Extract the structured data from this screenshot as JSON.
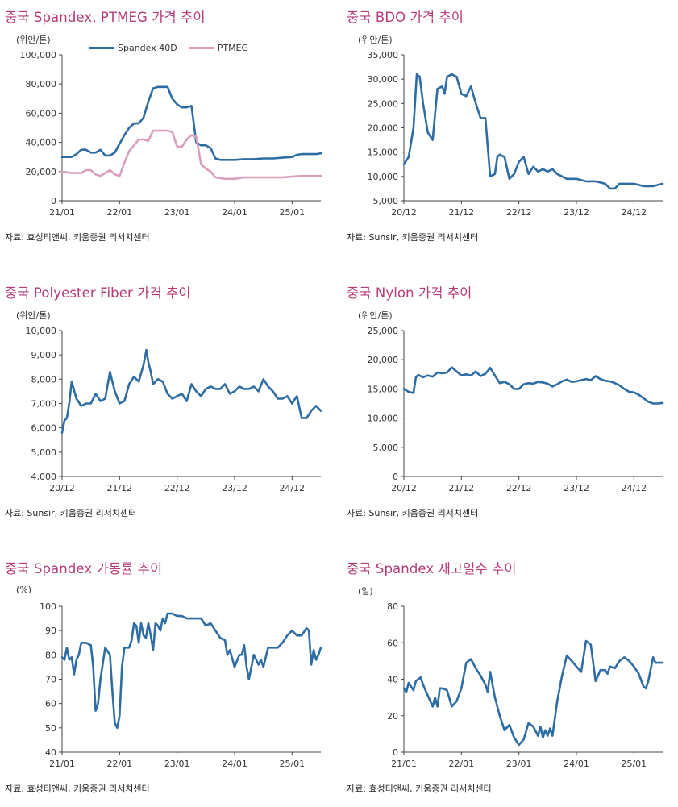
{
  "chart_data": [
    {
      "id": "spandex-ptmeg",
      "type": "line",
      "title": "중국 Spandex, PTMEG 가격 추이",
      "unit": "(위안/톤)",
      "source": "자료: 효성티앤씨, 키움증권 리서치센터",
      "ylim": [
        0,
        100000
      ],
      "yticks": [
        "0",
        "20,000",
        "40,000",
        "60,000",
        "80,000",
        "100,000"
      ],
      "xlim": [
        0,
        54
      ],
      "xticks": [
        {
          "label": "21/01",
          "x": 0
        },
        {
          "label": "22/01",
          "x": 12
        },
        {
          "label": "23/01",
          "x": 24
        },
        {
          "label": "24/01",
          "x": 36
        },
        {
          "label": "25/01",
          "x": 48
        }
      ],
      "legend": "top-center",
      "series": [
        {
          "name": "Spandex 40D",
          "color": "#2e6da4",
          "x": [
            0,
            2,
            3,
            4,
            5,
            6,
            7,
            8,
            9,
            10,
            11,
            12,
            13,
            14,
            15,
            16,
            17,
            18,
            19,
            20,
            21,
            22,
            23,
            24,
            25,
            26,
            27,
            28,
            29,
            30,
            31,
            32,
            33,
            34,
            35,
            36,
            38,
            40,
            42,
            44,
            46,
            48,
            49,
            50,
            52,
            53,
            54
          ],
          "y": [
            30000,
            30000,
            32000,
            35000,
            35000,
            33000,
            33000,
            35000,
            31000,
            31000,
            33000,
            39000,
            45000,
            50000,
            53000,
            53000,
            57000,
            68000,
            77000,
            78000,
            78000,
            78000,
            70000,
            66000,
            64000,
            64000,
            65000,
            40000,
            38000,
            38000,
            36000,
            29000,
            28000,
            28000,
            28000,
            28000,
            28500,
            28500,
            29000,
            29000,
            29500,
            30000,
            31500,
            32000,
            32000,
            32000,
            32500
          ]
        },
        {
          "name": "PTMEG",
          "color": "#d9a0bd",
          "x": [
            0,
            2,
            4,
            5,
            6,
            7,
            8,
            9,
            10,
            11,
            12,
            13,
            14,
            15,
            16,
            17,
            18,
            19,
            20,
            21,
            22,
            23,
            24,
            25,
            26,
            27,
            28,
            29,
            30,
            31,
            32,
            34,
            36,
            38,
            40,
            42,
            44,
            46,
            48,
            50,
            52,
            54
          ],
          "y": [
            20000,
            19000,
            19000,
            21000,
            21000,
            18000,
            17000,
            19000,
            21000,
            18000,
            17000,
            26000,
            34000,
            38000,
            42000,
            42000,
            41000,
            48000,
            48000,
            48000,
            48000,
            47000,
            37000,
            37000,
            42000,
            45000,
            44000,
            25000,
            22000,
            20000,
            16000,
            15000,
            15000,
            16000,
            16000,
            16000,
            16000,
            16000,
            16500,
            17000,
            17000,
            17000
          ]
        }
      ]
    },
    {
      "id": "bdo",
      "type": "line",
      "title": "중국 BDO 가격 추이",
      "unit": "(위안/톤)",
      "source": "자료: Sunsir, 키움증권 리서치센터",
      "ylim": [
        5000,
        35000
      ],
      "yticks": [
        "5,000",
        "10,000",
        "15,000",
        "20,000",
        "25,000",
        "30,000",
        "35,000"
      ],
      "xlim": [
        0,
        54
      ],
      "xticks": [
        {
          "label": "20/12",
          "x": 0
        },
        {
          "label": "21/12",
          "x": 12
        },
        {
          "label": "22/12",
          "x": 24
        },
        {
          "label": "23/12",
          "x": 36
        },
        {
          "label": "24/12",
          "x": 48
        }
      ],
      "series": [
        {
          "name": "",
          "color": "#2e6da4",
          "x": [
            0,
            1,
            2,
            2.7,
            3.3,
            4,
            5,
            6,
            7,
            8,
            8.5,
            9,
            10,
            11,
            12,
            13,
            14,
            15,
            16,
            17,
            18,
            19,
            19.5,
            20,
            21,
            22,
            23,
            24,
            25,
            26,
            27,
            28,
            29,
            30,
            31,
            32,
            33,
            34,
            35,
            36,
            38,
            40,
            42,
            43,
            44,
            45,
            46,
            47,
            48,
            50,
            52,
            54
          ],
          "y": [
            12500,
            14000,
            20000,
            31000,
            30500,
            25000,
            19000,
            17500,
            28000,
            28500,
            27000,
            30500,
            31000,
            30500,
            27000,
            26500,
            28500,
            25000,
            22000,
            22000,
            10000,
            10500,
            14000,
            14500,
            14000,
            9500,
            10500,
            13000,
            14000,
            10500,
            12000,
            11000,
            11500,
            11000,
            11500,
            10500,
            10000,
            9500,
            9500,
            9500,
            9000,
            9000,
            8500,
            7500,
            7500,
            8500,
            8500,
            8500,
            8500,
            8000,
            8000,
            8500
          ]
        }
      ]
    },
    {
      "id": "polyester",
      "type": "line",
      "title": "중국 Polyester Fiber 가격 추이",
      "unit": "(위안/톤)",
      "source": "자료: Sunsir, 키움증권 리서치센터",
      "ylim": [
        4000,
        10000
      ],
      "yticks": [
        "4,000",
        "5,000",
        "6,000",
        "7,000",
        "8,000",
        "9,000",
        "10,000"
      ],
      "xlim": [
        0,
        54
      ],
      "xticks": [
        {
          "label": "20/12",
          "x": 0
        },
        {
          "label": "21/12",
          "x": 12
        },
        {
          "label": "22/12",
          "x": 24
        },
        {
          "label": "23/12",
          "x": 36
        },
        {
          "label": "24/12",
          "x": 48
        }
      ],
      "series": [
        {
          "name": "",
          "color": "#2e6da4",
          "x": [
            0,
            0.5,
            1,
            1.5,
            2,
            3,
            4,
            5,
            6,
            7,
            8,
            9,
            10,
            11,
            12,
            13,
            14,
            15,
            16,
            17,
            17.6,
            18,
            18.5,
            19,
            20,
            21,
            22,
            23,
            24,
            25,
            26,
            27,
            28,
            29,
            30,
            31,
            32,
            33,
            34,
            35,
            36,
            37,
            38,
            39,
            40,
            41,
            42,
            43,
            44,
            45,
            46,
            47,
            48,
            49,
            50,
            51,
            52,
            53,
            54
          ],
          "y": [
            5800,
            6300,
            6400,
            7000,
            7900,
            7200,
            6900,
            7000,
            7000,
            7400,
            7100,
            7200,
            8300,
            7500,
            7000,
            7100,
            7800,
            8100,
            7900,
            8600,
            9200,
            8700,
            8300,
            7800,
            8000,
            7900,
            7400,
            7200,
            7300,
            7400,
            7100,
            7800,
            7500,
            7300,
            7600,
            7700,
            7600,
            7600,
            7800,
            7400,
            7500,
            7700,
            7600,
            7600,
            7700,
            7500,
            8000,
            7700,
            7500,
            7200,
            7200,
            7300,
            7000,
            7300,
            6400,
            6400,
            6700,
            6900,
            6700
          ]
        }
      ]
    },
    {
      "id": "nylon",
      "type": "line",
      "title": "중국 Nylon 가격 추이",
      "unit": "(위안/톤)",
      "source": "자료: Sunsir, 키움증권 리서치센터",
      "ylim": [
        0,
        25000
      ],
      "yticks": [
        "0",
        "5,000",
        "10,000",
        "15,000",
        "20,000",
        "25,000"
      ],
      "xlim": [
        0,
        54
      ],
      "xticks": [
        {
          "label": "20/12",
          "x": 0
        },
        {
          "label": "21/12",
          "x": 12
        },
        {
          "label": "22/12",
          "x": 24
        },
        {
          "label": "23/12",
          "x": 36
        },
        {
          "label": "24/12",
          "x": 48
        }
      ],
      "series": [
        {
          "name": "",
          "color": "#2e6da4",
          "x": [
            0,
            1,
            2,
            2.5,
            3,
            4,
            5,
            6,
            7,
            8,
            9,
            10,
            11,
            12,
            13,
            14,
            15,
            16,
            17,
            18,
            19,
            20,
            21,
            22,
            23,
            24,
            25,
            26,
            27,
            28,
            29,
            30,
            31,
            32,
            33,
            34,
            35,
            36,
            37,
            38,
            39,
            40,
            41,
            42,
            43,
            44,
            45,
            46,
            47,
            48,
            49,
            50,
            51,
            52,
            53,
            54
          ],
          "y": [
            15000,
            14500,
            14300,
            17000,
            17400,
            17000,
            17300,
            17100,
            17800,
            17700,
            17800,
            18700,
            18000,
            17300,
            17500,
            17300,
            18000,
            17200,
            17600,
            18600,
            17300,
            16000,
            16200,
            15800,
            15000,
            15000,
            15800,
            16000,
            15900,
            16200,
            16100,
            15900,
            15400,
            15800,
            16300,
            16600,
            16200,
            16300,
            16500,
            16700,
            16500,
            17200,
            16700,
            16400,
            16300,
            16000,
            15600,
            15000,
            14500,
            14400,
            14000,
            13400,
            12800,
            12500,
            12500,
            12600
          ]
        }
      ]
    },
    {
      "id": "utilization",
      "type": "line",
      "title": "중국 Spandex 가동률 추이",
      "unit": "(%)",
      "source": "자료: 효성티앤씨, 키움증권 리서치센터",
      "ylim": [
        40,
        100
      ],
      "yticks": [
        "40",
        "50",
        "60",
        "70",
        "80",
        "90",
        "100"
      ],
      "xlim": [
        0,
        54
      ],
      "xticks": [
        {
          "label": "21/01",
          "x": 0
        },
        {
          "label": "22/01",
          "x": 12
        },
        {
          "label": "23/01",
          "x": 24
        },
        {
          "label": "24/01",
          "x": 36
        },
        {
          "label": "25/01",
          "x": 48
        }
      ],
      "series": [
        {
          "name": "",
          "color": "#2e6da4",
          "x": [
            0,
            0.5,
            1,
            1.5,
            2,
            2.5,
            3,
            3.5,
            4,
            5,
            6,
            6.5,
            7,
            7.5,
            8,
            9,
            10,
            10.5,
            11,
            11.5,
            12,
            12.5,
            13,
            14,
            14.5,
            15,
            15.5,
            16,
            16.5,
            17,
            17.5,
            18,
            18.5,
            19,
            19.5,
            20,
            20.5,
            21,
            21.5,
            22,
            23,
            24,
            25,
            26,
            27,
            28,
            29,
            30,
            31,
            32,
            33,
            34,
            34.5,
            35,
            36,
            37,
            37.5,
            38,
            38.5,
            39,
            40,
            40.5,
            41,
            41.5,
            42,
            43,
            44,
            45,
            46,
            47,
            48,
            49,
            50,
            51,
            51.5,
            52,
            52.5,
            53,
            53.5,
            54
          ],
          "y": [
            79,
            78,
            83,
            78,
            79,
            72,
            78,
            80,
            85,
            85,
            84,
            75,
            57,
            60,
            70,
            83,
            80,
            65,
            52,
            50,
            55,
            75,
            83,
            83,
            86,
            93,
            92,
            85,
            93,
            88,
            87,
            93,
            88,
            82,
            93,
            92,
            90,
            95,
            93,
            97,
            97,
            96,
            96,
            95,
            95,
            95,
            95,
            92,
            93,
            90,
            87,
            86,
            80,
            82,
            75,
            80,
            80,
            84,
            75,
            70,
            80,
            78,
            76,
            78,
            75,
            83,
            83,
            83,
            85,
            88,
            90,
            88,
            88,
            91,
            90,
            76,
            82,
            78,
            80,
            83
          ]
        }
      ]
    },
    {
      "id": "inventory",
      "type": "line",
      "title": "중국 Spandex 재고일수 추이",
      "unit": "(일)",
      "source": "자료: 효성티앤씨, 키움증권 리서치센터",
      "ylim": [
        0,
        80
      ],
      "yticks": [
        "0",
        "20",
        "40",
        "60",
        "80"
      ],
      "xlim": [
        0,
        54
      ],
      "xticks": [
        {
          "label": "21/01",
          "x": 0
        },
        {
          "label": "22/01",
          "x": 12
        },
        {
          "label": "23/01",
          "x": 24
        },
        {
          "label": "24/01",
          "x": 36
        },
        {
          "label": "25/01",
          "x": 48
        }
      ],
      "series": [
        {
          "name": "",
          "color": "#2e6da4",
          "x": [
            0,
            0.5,
            1,
            1.5,
            2,
            2.5,
            3,
            3.5,
            4,
            5,
            6,
            6.5,
            7,
            7.5,
            8,
            9,
            10,
            11,
            12,
            13,
            14,
            15,
            16,
            17,
            17.5,
            18,
            19,
            20,
            21,
            22,
            23,
            24,
            25,
            26,
            27,
            28,
            28.5,
            29,
            29.5,
            30,
            30.5,
            31,
            32,
            33,
            34,
            35,
            36,
            37,
            38,
            39,
            40,
            40.5,
            41,
            42,
            42.5,
            43,
            44,
            45,
            46,
            47,
            48,
            49,
            50,
            50.5,
            51,
            52,
            52.5,
            53,
            54
          ],
          "y": [
            35,
            33,
            38,
            36,
            34,
            39,
            40,
            41,
            37,
            31,
            25,
            30,
            25,
            35,
            35,
            34,
            25,
            28,
            35,
            49,
            51,
            46,
            42,
            37,
            33,
            44,
            30,
            20,
            12,
            15,
            8,
            4,
            7,
            16,
            14,
            9,
            14,
            8,
            12,
            9,
            13,
            9,
            28,
            42,
            53,
            50,
            47,
            44,
            61,
            59,
            39,
            42,
            45,
            45,
            43,
            47,
            46,
            50,
            52,
            50,
            47,
            43,
            36,
            35,
            39,
            52,
            49,
            49,
            49
          ]
        }
      ]
    }
  ]
}
